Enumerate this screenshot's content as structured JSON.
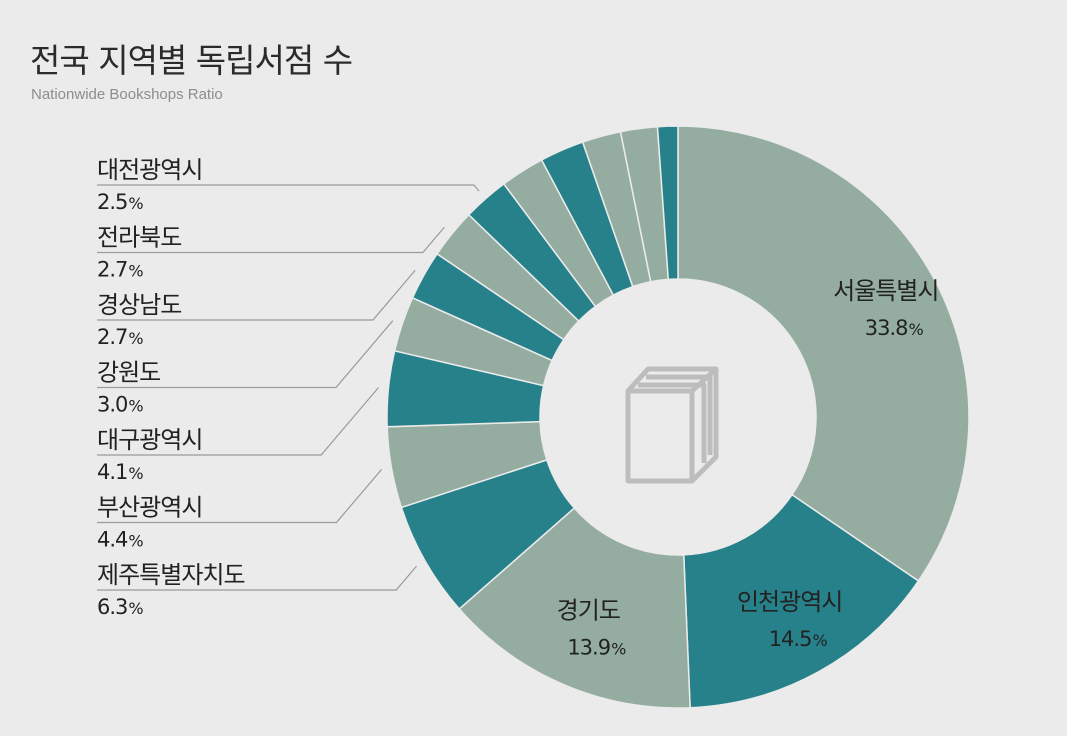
{
  "title": "전국 지역별 독립서점 수",
  "subtitle": "Nationwide Bookshops Ratio",
  "colors": {
    "teal": "#27818b",
    "sage": "#94ada0",
    "leader": "#9a9a9a",
    "icon": "#bdbdbd",
    "background": "#ebebeb"
  },
  "center_icon": "book-icon",
  "chart_data": {
    "type": "pie",
    "variant": "donut",
    "unit": "%",
    "slices": [
      {
        "label": "서울특별시",
        "value": 33.8,
        "display": "33.8",
        "color": "sage"
      },
      {
        "label": "인천광역시",
        "value": 14.5,
        "display": "14.5",
        "color": "teal"
      },
      {
        "label": "경기도",
        "value": 13.9,
        "display": "13.9",
        "color": "sage"
      },
      {
        "label": "제주특별자치도",
        "value": 6.3,
        "display": "6.3",
        "color": "teal"
      },
      {
        "label": "부산광역시",
        "value": 4.4,
        "display": "4.4",
        "color": "sage"
      },
      {
        "label": "대구광역시",
        "value": 4.1,
        "display": "4.1",
        "color": "teal"
      },
      {
        "label": "강원도",
        "value": 3.0,
        "display": "3.0",
        "color": "sage"
      },
      {
        "label": "경상남도",
        "value": 2.7,
        "display": "2.7",
        "color": "teal"
      },
      {
        "label": "전라북도",
        "value": 2.7,
        "display": "2.7",
        "color": "sage"
      },
      {
        "label": "대전광역시",
        "value": 2.5,
        "display": "2.5",
        "color": "teal"
      },
      {
        "label": "",
        "value": 2.4,
        "display": "",
        "color": "sage"
      },
      {
        "label": "",
        "value": 2.4,
        "display": "",
        "color": "teal"
      },
      {
        "label": "",
        "value": 2.1,
        "display": "",
        "color": "sage"
      },
      {
        "label": "",
        "value": 2.0,
        "display": "",
        "color": "sage"
      },
      {
        "label": "",
        "value": 1.1,
        "display": "",
        "color": "teal"
      }
    ]
  }
}
